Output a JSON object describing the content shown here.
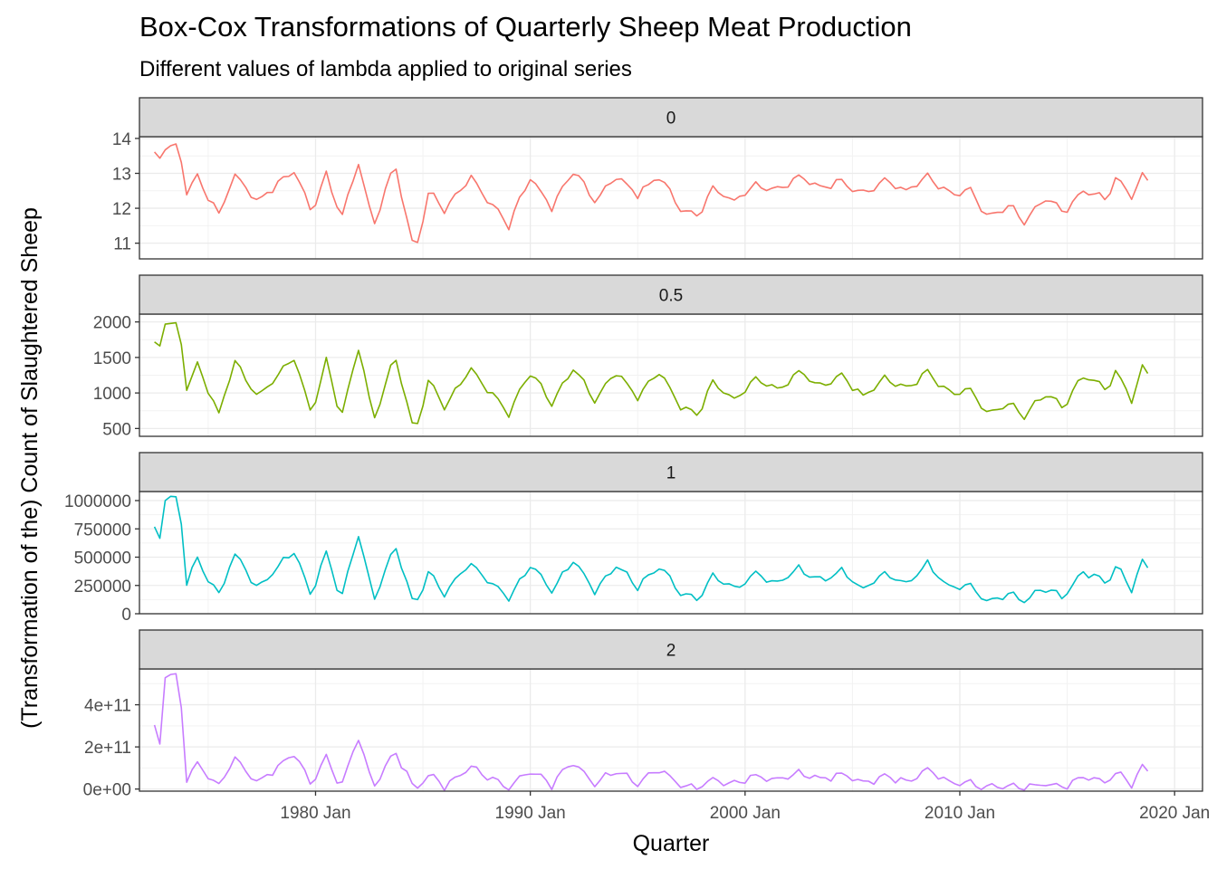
{
  "title": "Box-Cox Transformations of Quarterly Sheep Meat Production",
  "subtitle": "Different values of lambda applied to original series",
  "chart_data": {
    "type": "line",
    "title": "Box-Cox Transformations of Quarterly Sheep Meat Production",
    "subtitle": "Different values of lambda applied to original series",
    "xlabel": "Quarter",
    "ylabel": "(Transformation of the) Count of Slaughtered Sheep",
    "x_tick_labels": [
      "1980 Jan",
      "1990 Jan",
      "2000 Jan",
      "2010 Jan",
      "2020 Jan"
    ],
    "x_ticks": [
      1980,
      1990,
      2000,
      2010,
      2020
    ],
    "xlim": [
      1971.8,
      2021.3
    ],
    "x_range_data": [
      1972.5,
      2018.9
    ],
    "grid": true,
    "legend": "none",
    "facets": [
      {
        "strip": "0",
        "color": "#F8766D",
        "ylim": [
          10.55,
          14.05
        ],
        "y_ticks": [
          11,
          12,
          13,
          14
        ],
        "y_tick_labels": [
          "11",
          "12",
          "13",
          "14"
        ],
        "anchors": [
          [
            1972.5,
            13.5
          ],
          [
            1972.8,
            13.4
          ],
          [
            1973.0,
            13.8
          ],
          [
            1973.7,
            13.7
          ],
          [
            1973.9,
            12.4
          ],
          [
            1974.5,
            12.9
          ],
          [
            1975.5,
            11.8
          ],
          [
            1976.2,
            13.0
          ],
          [
            1977.3,
            12.2
          ],
          [
            1979.0,
            13.1
          ],
          [
            1979.8,
            11.9
          ],
          [
            1980.5,
            13.0
          ],
          [
            1981.2,
            11.7
          ],
          [
            1982.0,
            13.3
          ],
          [
            1982.7,
            11.5
          ],
          [
            1983.7,
            13.3
          ],
          [
            1984.6,
            10.7
          ],
          [
            1985.3,
            12.5
          ],
          [
            1986.0,
            11.9
          ],
          [
            1987.2,
            12.9
          ],
          [
            1989.0,
            11.5
          ],
          [
            1990.0,
            12.9
          ],
          [
            1991.0,
            12.0
          ],
          [
            1992.0,
            13.1
          ],
          [
            1993.0,
            12.2
          ],
          [
            1994.0,
            12.9
          ],
          [
            1995.0,
            12.4
          ],
          [
            1996.0,
            12.9
          ],
          [
            1997.0,
            12.0
          ],
          [
            1997.8,
            11.8
          ],
          [
            1998.5,
            12.6
          ],
          [
            1999.5,
            12.2
          ],
          [
            2000.5,
            12.7
          ],
          [
            2001.5,
            12.5
          ],
          [
            2002.5,
            12.9
          ],
          [
            2003.5,
            12.6
          ],
          [
            2004.5,
            12.8
          ],
          [
            2005.5,
            12.4
          ],
          [
            2006.5,
            12.8
          ],
          [
            2007.5,
            12.5
          ],
          [
            2008.5,
            12.9
          ],
          [
            2009.5,
            12.4
          ],
          [
            2010.5,
            12.5
          ],
          [
            2011.3,
            11.7
          ],
          [
            2012.3,
            12.1
          ],
          [
            2013.0,
            11.6
          ],
          [
            2014.0,
            12.3
          ],
          [
            2014.8,
            11.9
          ],
          [
            2015.8,
            12.5
          ],
          [
            2016.8,
            12.3
          ],
          [
            2017.3,
            12.9
          ],
          [
            2018.0,
            12.3
          ],
          [
            2018.5,
            12.9
          ],
          [
            2018.9,
            12.8
          ]
        ]
      },
      {
        "strip": "0.5",
        "color": "#7CAE00",
        "ylim": [
          390,
          2110
        ],
        "y_ticks": [
          500,
          1000,
          1500,
          2000
        ],
        "y_tick_labels": [
          "500",
          "1000",
          "1500",
          "2000"
        ],
        "anchors": [
          [
            1972.5,
            1700
          ],
          [
            1972.8,
            1650
          ],
          [
            1973.0,
            2000
          ],
          [
            1973.7,
            1950
          ],
          [
            1973.9,
            1000
          ],
          [
            1974.5,
            1400
          ],
          [
            1975.5,
            700
          ],
          [
            1976.2,
            1450
          ],
          [
            1977.3,
            950
          ],
          [
            1979.0,
            1500
          ],
          [
            1979.8,
            700
          ],
          [
            1980.5,
            1450
          ],
          [
            1981.2,
            650
          ],
          [
            1982.0,
            1650
          ],
          [
            1982.7,
            600
          ],
          [
            1983.7,
            1550
          ],
          [
            1984.6,
            420
          ],
          [
            1985.3,
            1200
          ],
          [
            1986.0,
            800
          ],
          [
            1987.2,
            1350
          ],
          [
            1989.0,
            700
          ],
          [
            1990.0,
            1300
          ],
          [
            1991.0,
            850
          ],
          [
            1992.0,
            1350
          ],
          [
            1993.0,
            900
          ],
          [
            1994.0,
            1300
          ],
          [
            1995.0,
            950
          ],
          [
            1996.0,
            1300
          ],
          [
            1997.0,
            800
          ],
          [
            1997.8,
            700
          ],
          [
            1998.5,
            1150
          ],
          [
            1999.5,
            900
          ],
          [
            2000.5,
            1200
          ],
          [
            2001.5,
            1050
          ],
          [
            2002.5,
            1300
          ],
          [
            2003.5,
            1100
          ],
          [
            2004.5,
            1250
          ],
          [
            2005.5,
            950
          ],
          [
            2006.5,
            1200
          ],
          [
            2007.5,
            1050
          ],
          [
            2008.5,
            1300
          ],
          [
            2009.5,
            1000
          ],
          [
            2010.5,
            1050
          ],
          [
            2011.3,
            700
          ],
          [
            2012.3,
            850
          ],
          [
            2013.0,
            680
          ],
          [
            2014.0,
            1000
          ],
          [
            2014.8,
            800
          ],
          [
            2015.8,
            1250
          ],
          [
            2016.8,
            1050
          ],
          [
            2017.3,
            1300
          ],
          [
            2018.0,
            900
          ],
          [
            2018.5,
            1350
          ],
          [
            2018.9,
            1250
          ]
        ]
      },
      {
        "strip": "1",
        "color": "#00BFC4",
        "ylim": [
          0,
          1080000
        ],
        "y_ticks": [
          0,
          250000,
          500000,
          750000,
          1000000
        ],
        "y_tick_labels": [
          "0",
          "250000",
          "500000",
          "750000",
          "1000000"
        ],
        "anchors": [
          [
            1972.5,
            750000
          ],
          [
            1972.8,
            650000
          ],
          [
            1973.0,
            1030000
          ],
          [
            1973.7,
            1000000
          ],
          [
            1973.9,
            250000
          ],
          [
            1974.5,
            480000
          ],
          [
            1975.5,
            150000
          ],
          [
            1976.2,
            540000
          ],
          [
            1977.3,
            230000
          ],
          [
            1979.0,
            560000
          ],
          [
            1979.8,
            160000
          ],
          [
            1980.5,
            540000
          ],
          [
            1981.2,
            130000
          ],
          [
            1982.0,
            700000
          ],
          [
            1982.7,
            120000
          ],
          [
            1983.7,
            600000
          ],
          [
            1984.6,
            60000
          ],
          [
            1985.3,
            370000
          ],
          [
            1986.0,
            180000
          ],
          [
            1987.2,
            450000
          ],
          [
            1989.0,
            130000
          ],
          [
            1990.0,
            430000
          ],
          [
            1991.0,
            200000
          ],
          [
            1992.0,
            480000
          ],
          [
            1993.0,
            210000
          ],
          [
            1994.0,
            430000
          ],
          [
            1995.0,
            240000
          ],
          [
            1996.0,
            420000
          ],
          [
            1997.0,
            180000
          ],
          [
            1997.8,
            130000
          ],
          [
            1998.5,
            330000
          ],
          [
            1999.5,
            220000
          ],
          [
            2000.5,
            360000
          ],
          [
            2001.5,
            270000
          ],
          [
            2002.5,
            400000
          ],
          [
            2003.5,
            290000
          ],
          [
            2004.5,
            380000
          ],
          [
            2005.5,
            210000
          ],
          [
            2006.5,
            360000
          ],
          [
            2007.5,
            260000
          ],
          [
            2008.5,
            440000
          ],
          [
            2009.5,
            230000
          ],
          [
            2010.5,
            250000
          ],
          [
            2011.3,
            110000
          ],
          [
            2012.3,
            180000
          ],
          [
            2013.0,
            110000
          ],
          [
            2014.0,
            230000
          ],
          [
            2014.8,
            150000
          ],
          [
            2015.8,
            380000
          ],
          [
            2016.8,
            260000
          ],
          [
            2017.3,
            420000
          ],
          [
            2018.0,
            200000
          ],
          [
            2018.5,
            460000
          ],
          [
            2018.9,
            380000
          ]
        ]
      },
      {
        "strip": "2",
        "color": "#C77CFF",
        "ylim": [
          -10000000000.0,
          570000000000.0
        ],
        "y_ticks": [
          0,
          200000000000.0,
          400000000000.0
        ],
        "y_tick_labels": [
          "0e+00",
          "2e+11",
          "4e+11"
        ],
        "anchors": [
          [
            1972.5,
            290000000000.0
          ],
          [
            1972.8,
            200000000000.0
          ],
          [
            1973.0,
            550000000000.0
          ],
          [
            1973.7,
            520000000000.0
          ],
          [
            1973.9,
            30000000000.0
          ],
          [
            1974.5,
            120000000000.0
          ],
          [
            1975.5,
            10000000000.0
          ],
          [
            1976.2,
            150000000000.0
          ],
          [
            1977.3,
            30000000000.0
          ],
          [
            1979.0,
            170000000000.0
          ],
          [
            1979.8,
            15000000000.0
          ],
          [
            1980.5,
            150000000000.0
          ],
          [
            1981.2,
            10000000000.0
          ],
          [
            1982.0,
            250000000000.0
          ],
          [
            1982.7,
            8000000000.0
          ],
          [
            1983.7,
            180000000000.0
          ],
          [
            1984.6,
            2000000000.0
          ],
          [
            1985.3,
            70000000000.0
          ],
          [
            1986.0,
            15000000000.0
          ],
          [
            1987.2,
            100000000000.0
          ],
          [
            1989.0,
            10000000000.0
          ],
          [
            1990.0,
            90000000000.0
          ],
          [
            1991.0,
            20000000000.0
          ],
          [
            1992.0,
            130000000000.0
          ],
          [
            1993.0,
            25000000000.0
          ],
          [
            1994.0,
            90000000000.0
          ],
          [
            1995.0,
            30000000000.0
          ],
          [
            1996.0,
            90000000000.0
          ],
          [
            1997.0,
            15000000000.0
          ],
          [
            1997.8,
            8000000000.0
          ],
          [
            1998.5,
            50000000000.0
          ],
          [
            1999.5,
            25000000000.0
          ],
          [
            2000.5,
            60000000000.0
          ],
          [
            2001.5,
            40000000000.0
          ],
          [
            2002.5,
            80000000000.0
          ],
          [
            2003.5,
            45000000000.0
          ],
          [
            2004.5,
            70000000000.0
          ],
          [
            2005.5,
            25000000000.0
          ],
          [
            2006.5,
            60000000000.0
          ],
          [
            2007.5,
            35000000000.0
          ],
          [
            2008.5,
            90000000000.0
          ],
          [
            2009.5,
            30000000000.0
          ],
          [
            2010.5,
            30000000000.0
          ],
          [
            2011.3,
            6000000000.0
          ],
          [
            2012.3,
            15000000000.0
          ],
          [
            2013.0,
            6000000000.0
          ],
          [
            2014.0,
            25000000000.0
          ],
          [
            2014.8,
            10000000000.0
          ],
          [
            2015.8,
            65000000000.0
          ],
          [
            2016.8,
            35000000000.0
          ],
          [
            2017.3,
            80000000000.0
          ],
          [
            2018.0,
            20000000000.0
          ],
          [
            2018.5,
            110000000000.0
          ],
          [
            2018.9,
            70000000000.0
          ]
        ]
      }
    ]
  }
}
